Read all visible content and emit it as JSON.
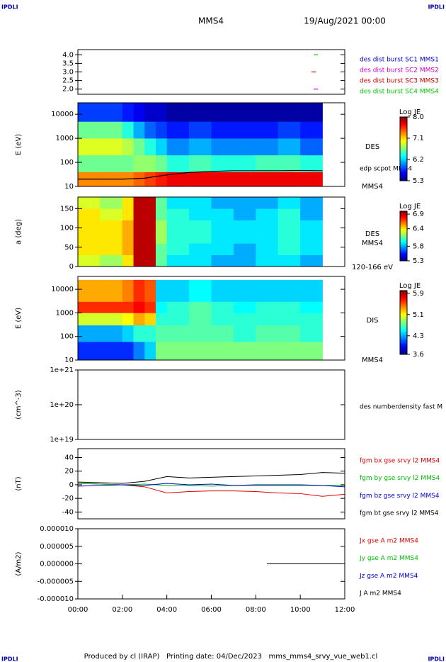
{
  "header": {
    "left": "IPDLI",
    "right": "IPDLI",
    "title": "MMS4",
    "date": "19/Aug/2021 00:00"
  },
  "footer": {
    "left": "IPDLI",
    "right": "IPDLI",
    "text": "Produced by cl (IRAP)   Printing date: 04/Dec/2023   mms_mms4_srvy_vue_web1.cl"
  },
  "chart_data": [
    {
      "type": "scatter",
      "xlim": [
        0,
        12
      ],
      "ylim": [
        1.7,
        4.3
      ],
      "yticks": [
        {
          "value": 2,
          "label": "2.0"
        },
        2.5,
        {
          "value": 3,
          "label": "3.0"
        },
        3.5,
        {
          "value": 4,
          "label": "4.0"
        }
      ],
      "series": [
        {
          "name": "des dist burst SC1 MMS1",
          "color": "#0000cc",
          "x": [],
          "values": []
        },
        {
          "name": "des dist burst SC2 MMS2",
          "color": "#cc00cc",
          "x": [
            10.7
          ],
          "values": [
            2
          ]
        },
        {
          "name": "des dist burst SC3 MMS3",
          "color": "#cc0000",
          "x": [
            10.6
          ],
          "values": [
            3
          ]
        },
        {
          "name": "des dist burst SC4 MMS4",
          "color": "#00cc00",
          "x": [
            10.7
          ],
          "values": [
            4
          ]
        }
      ]
    },
    {
      "type": "heatmap",
      "y_label": "E (eV)",
      "log_y": true,
      "xlim": [
        0,
        12
      ],
      "ylim": [
        10,
        30000
      ],
      "yticks": [
        10,
        100,
        1000,
        10000
      ],
      "instrument": "DES",
      "spacecraft": "MMS4",
      "x": [
        0,
        1,
        2,
        2.5,
        3,
        3.5,
        4,
        5,
        6,
        7,
        8,
        9,
        10,
        11
      ],
      "y": [
        10,
        40,
        200,
        1000,
        5000,
        30000
      ],
      "z": [
        [
          7.3,
          7.3,
          7.3,
          7.4,
          7.5,
          7.6,
          7.7,
          7.7,
          7.7,
          7.7,
          7.7,
          7.7,
          7.7
        ],
        [
          6.6,
          6.6,
          6.6,
          6.7,
          6.7,
          6.6,
          6.4,
          6.5,
          6.4,
          6.4,
          6.5,
          6.5,
          6.4
        ],
        [
          6.9,
          6.9,
          6.8,
          6.6,
          6.4,
          6.2,
          6.0,
          6.1,
          6.0,
          6.0,
          6.0,
          6.1,
          5.9
        ],
        [
          6.6,
          6.6,
          6.4,
          6.1,
          5.9,
          5.8,
          5.7,
          5.8,
          5.7,
          5.7,
          5.7,
          5.8,
          5.7
        ],
        [
          5.8,
          5.8,
          5.7,
          5.6,
          5.5,
          5.5,
          5.4,
          5.4,
          5.4,
          5.4,
          5.4,
          5.4,
          5.4
        ]
      ],
      "overlay": {
        "name": "edp scpot MMS4",
        "color": "#000000",
        "x": [
          0,
          1,
          2,
          3,
          4,
          5,
          6,
          7,
          8,
          9,
          10,
          11
        ],
        "values": [
          20,
          20,
          20,
          22,
          30,
          38,
          42,
          45,
          45,
          45,
          46,
          45
        ]
      },
      "colorbar": {
        "title": "Log JE",
        "lim": [
          5.3,
          8.0
        ],
        "ticks": [
          {
            "value": 8,
            "label": "8.0"
          },
          7.1,
          6.2,
          5.3
        ]
      }
    },
    {
      "type": "heatmap",
      "y_label": "a (deg)",
      "log_y": false,
      "xlim": [
        0,
        12
      ],
      "ylim": [
        0,
        180
      ],
      "yticks": [
        0,
        50,
        100,
        150
      ],
      "instrument": "DES",
      "spacecraft": "MMS4",
      "energy_range": "120-166 eV",
      "x": [
        0,
        1,
        2,
        2.5,
        3,
        3.5,
        4,
        5,
        6,
        7,
        8,
        9,
        10,
        11
      ],
      "y": [
        0,
        30,
        60,
        90,
        120,
        150,
        180
      ],
      "z": [
        [
          6.3,
          6.2,
          6.4,
          6.9,
          6.9,
          6.1,
          5.9,
          5.9,
          5.8,
          5.8,
          5.9,
          5.9,
          5.8
        ],
        [
          6.4,
          6.4,
          6.5,
          6.9,
          6.9,
          6.1,
          6.0,
          5.9,
          5.9,
          5.8,
          5.9,
          6.0,
          5.9
        ],
        [
          6.4,
          6.4,
          6.5,
          6.9,
          6.9,
          6.2,
          6.0,
          6.0,
          5.9,
          5.9,
          5.9,
          6.0,
          5.9
        ],
        [
          6.4,
          6.4,
          6.5,
          6.9,
          6.9,
          6.2,
          6.0,
          6.0,
          5.9,
          5.9,
          5.9,
          6.0,
          5.9
        ],
        [
          6.4,
          6.3,
          6.4,
          6.9,
          6.9,
          6.1,
          6.0,
          5.9,
          5.9,
          5.8,
          5.9,
          6.0,
          5.8
        ],
        [
          6.3,
          6.2,
          6.4,
          6.9,
          6.9,
          6.1,
          5.9,
          5.9,
          5.8,
          5.8,
          5.8,
          5.9,
          5.8
        ]
      ],
      "colorbar": {
        "title": "Log JE",
        "lim": [
          5.3,
          7.0
        ],
        "ticks": [
          6.9,
          6.4,
          5.8,
          5.3
        ]
      }
    },
    {
      "type": "heatmap",
      "y_label": "E (eV)",
      "log_y": true,
      "xlim": [
        0,
        12
      ],
      "ylim": [
        10,
        35000
      ],
      "yticks": [
        10,
        100,
        1000,
        10000
      ],
      "instrument": "DIS",
      "spacecraft": "MMS4",
      "x": [
        0,
        1,
        2,
        2.5,
        3,
        3.5,
        4,
        5,
        6,
        7,
        8,
        9,
        10,
        11
      ],
      "y": [
        10,
        60,
        300,
        1000,
        3000,
        25000
      ],
      "z": [
        [
          4.0,
          4.0,
          4.0,
          4.2,
          4.4,
          4.8,
          4.8,
          4.8,
          4.8,
          4.8,
          4.8,
          4.8,
          4.8
        ],
        [
          4.3,
          4.3,
          4.4,
          4.6,
          4.6,
          4.7,
          4.7,
          4.7,
          4.7,
          4.6,
          4.7,
          4.7,
          4.6
        ],
        [
          5.0,
          5.0,
          5.1,
          5.3,
          5.2,
          4.6,
          4.6,
          4.7,
          4.6,
          4.6,
          4.6,
          4.6,
          4.6
        ],
        [
          5.6,
          5.6,
          5.6,
          5.7,
          5.6,
          4.5,
          4.6,
          4.7,
          4.6,
          4.5,
          4.6,
          4.6,
          4.5
        ],
        [
          5.3,
          5.3,
          5.4,
          5.6,
          5.5,
          4.4,
          4.4,
          4.5,
          4.4,
          4.4,
          4.4,
          4.4,
          4.4
        ]
      ],
      "colorbar": {
        "title": "Log JE",
        "lim": [
          3.6,
          6.0
        ],
        "ticks": [
          5.9,
          5.1,
          4.3,
          3.6
        ]
      }
    },
    {
      "type": "line",
      "y_label": "(cm^-3)",
      "log_y": true,
      "xlim": [
        0,
        12
      ],
      "ylim": [
        1e+19,
        1e+21
      ],
      "yticks": [
        {
          "value": 1e+19,
          "label": "1e+19"
        },
        {
          "value": 1e+20,
          "label": "1e+20"
        },
        {
          "value": 1e+21,
          "label": "1e+21"
        }
      ],
      "x": [],
      "series": [
        {
          "name": "des numberdensity fast M",
          "color": "#000000",
          "values": []
        }
      ]
    },
    {
      "type": "line",
      "y_label": "(nT)",
      "log_y": false,
      "xlim": [
        0,
        12
      ],
      "ylim": [
        -50,
        53
      ],
      "yticks": [
        -40,
        -20,
        0,
        20,
        40
      ],
      "x": [
        0,
        1,
        2,
        3,
        4,
        5,
        6,
        7,
        8,
        9,
        10,
        11,
        12
      ],
      "series": [
        {
          "name": "fgm bx gse srvy l2 MMS4",
          "color": "#dd0000",
          "values": [
            2,
            1,
            0,
            -3,
            -12,
            -10,
            -9,
            -9,
            -10,
            -12,
            -13,
            -17,
            -14
          ]
        },
        {
          "name": "fgm by gse srvy l2 MMS4",
          "color": "#00bb00",
          "values": [
            2,
            1,
            0,
            1,
            -1,
            -1,
            -2,
            -1,
            -1,
            -1,
            -1,
            -1,
            -1
          ]
        },
        {
          "name": "fgm bz gse srvy l2 MMS4",
          "color": "#0000cc",
          "values": [
            -2,
            -1,
            0,
            -1,
            2,
            0,
            1,
            -1,
            0,
            0,
            0,
            -1,
            -3
          ]
        },
        {
          "name": "fgm bt gse srvy l2 MMS4",
          "color": "#000000",
          "values": [
            4,
            3,
            2,
            5,
            12,
            10,
            11,
            12,
            13,
            14,
            15,
            18,
            17
          ]
        }
      ]
    },
    {
      "type": "line",
      "y_label": "(A/m2)",
      "log_y": false,
      "xlim": [
        0,
        12
      ],
      "ylim": [
        -1e-05,
        1e-05
      ],
      "yticks": [
        {
          "value": -1e-05,
          "label": "-0.000010"
        },
        {
          "value": -5e-06,
          "label": "-0.000005"
        },
        {
          "value": 0,
          "label": "0.000000"
        },
        {
          "value": 5e-06,
          "label": "0.000005"
        },
        {
          "value": 1e-05,
          "label": "0.000010"
        }
      ],
      "xticks": [
        {
          "value": 0,
          "label": "00:00"
        },
        {
          "value": 2,
          "label": "02:00"
        },
        {
          "value": 4,
          "label": "04:00"
        },
        {
          "value": 6,
          "label": "06:00"
        },
        {
          "value": 8,
          "label": "08:00"
        },
        {
          "value": 10,
          "label": "10:00"
        },
        {
          "value": 12,
          "label": "12:00"
        }
      ],
      "x": [
        8.5,
        9,
        10,
        11,
        12
      ],
      "series": [
        {
          "name": "Jx gse A m2 MMS4",
          "color": "#dd0000",
          "values": [
            0,
            0,
            0,
            0,
            0
          ]
        },
        {
          "name": "Jy gse A m2 MMS4",
          "color": "#00bb00",
          "values": [
            0,
            0,
            0,
            0,
            0
          ]
        },
        {
          "name": "Jz gse A m2 MMS4",
          "color": "#0000cc",
          "values": [
            0,
            0,
            0,
            0,
            0
          ]
        },
        {
          "name": "J A m2 MMS4",
          "color": "#000000",
          "values": [
            0,
            0,
            0,
            0,
            0
          ]
        }
      ]
    }
  ]
}
